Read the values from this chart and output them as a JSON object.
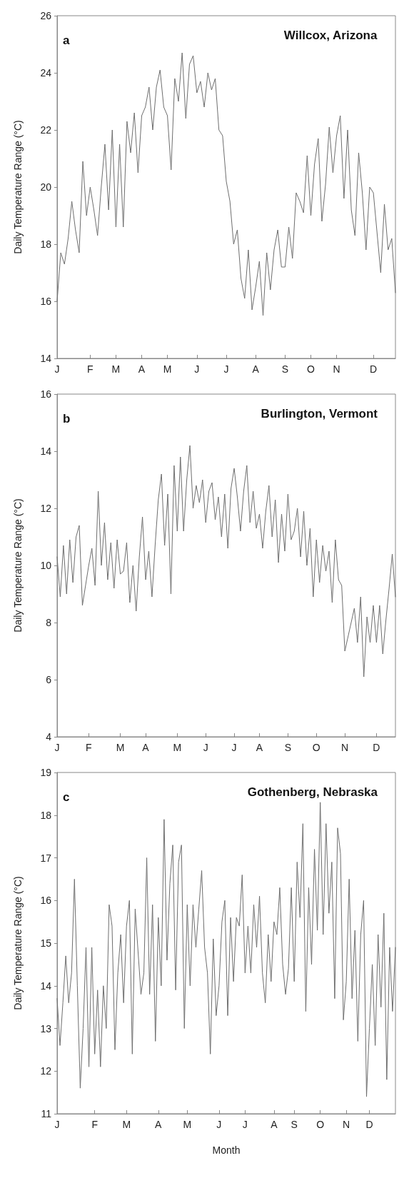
{
  "chart_data": [
    {
      "type": "line",
      "title": "Willcox, Arizona",
      "annotations": [
        "a"
      ],
      "ylabel": "Daily Temperature Range (°C)",
      "color": "#6e6e6e",
      "marker": "none",
      "line_style": "solid",
      "grid": false,
      "categories": [
        "J",
        null,
        null,
        null,
        null,
        null,
        null,
        null,
        null,
        "F",
        null,
        null,
        null,
        null,
        null,
        null,
        "M",
        null,
        null,
        null,
        null,
        null,
        null,
        "A",
        null,
        null,
        null,
        null,
        null,
        null,
        "M",
        null,
        null,
        null,
        null,
        null,
        null,
        null,
        "J",
        null,
        null,
        null,
        null,
        null,
        null,
        null,
        "J",
        null,
        null,
        null,
        null,
        null,
        null,
        null,
        "A",
        null,
        null,
        null,
        null,
        null,
        null,
        null,
        "S",
        null,
        null,
        null,
        null,
        null,
        null,
        "O",
        null,
        null,
        null,
        null,
        null,
        null,
        "N",
        null,
        null,
        null,
        null,
        null,
        null,
        null,
        null,
        null,
        "D",
        null,
        null,
        null,
        null,
        null,
        null
      ],
      "ylim": [
        14,
        26
      ],
      "yticks": [
        14,
        16,
        18,
        20,
        22,
        24,
        26
      ],
      "values": [
        16.0,
        17.7,
        17.3,
        18.2,
        19.5,
        18.5,
        17.7,
        20.9,
        19.0,
        20.0,
        19.2,
        18.3,
        20.0,
        21.5,
        19.2,
        22.0,
        18.6,
        21.5,
        18.6,
        22.3,
        21.2,
        22.6,
        20.5,
        22.5,
        22.8,
        23.5,
        22.0,
        23.5,
        24.1,
        22.8,
        22.5,
        20.6,
        23.8,
        23.0,
        24.7,
        22.4,
        24.3,
        24.6,
        23.3,
        23.7,
        22.8,
        24.0,
        23.4,
        23.8,
        22.0,
        21.8,
        20.2,
        19.5,
        18.0,
        18.5,
        16.8,
        16.1,
        17.8,
        15.7,
        16.5,
        17.4,
        15.5,
        17.7,
        16.4,
        17.8,
        18.5,
        17.2,
        17.2,
        18.6,
        17.5,
        19.8,
        19.5,
        19.1,
        21.1,
        19.0,
        20.8,
        21.7,
        18.8,
        20.1,
        22.1,
        20.5,
        21.8,
        22.5,
        19.6,
        22.0,
        19.2,
        18.3,
        21.2,
        19.8,
        17.8,
        20.0,
        19.8,
        18.4,
        17.0,
        19.4,
        17.8,
        18.2,
        16.3
      ]
    },
    {
      "type": "line",
      "title": "Burlington, Vermont",
      "annotations": [
        "b"
      ],
      "ylabel": "Daily Temperature Range (°C)",
      "color": "#6e6e6e",
      "marker": "none",
      "line_style": "solid",
      "grid": false,
      "categories": [
        "J",
        null,
        null,
        null,
        null,
        null,
        null,
        null,
        null,
        null,
        "F",
        null,
        null,
        null,
        null,
        null,
        null,
        null,
        null,
        null,
        "M",
        null,
        null,
        null,
        null,
        null,
        null,
        null,
        "A",
        null,
        null,
        null,
        null,
        null,
        null,
        null,
        null,
        null,
        "M",
        null,
        null,
        null,
        null,
        null,
        null,
        null,
        null,
        "J",
        null,
        null,
        null,
        null,
        null,
        null,
        null,
        null,
        "J",
        null,
        null,
        null,
        null,
        null,
        null,
        null,
        "A",
        null,
        null,
        null,
        null,
        null,
        null,
        null,
        null,
        "S",
        null,
        null,
        null,
        null,
        null,
        null,
        null,
        null,
        "O",
        null,
        null,
        null,
        null,
        null,
        null,
        null,
        null,
        "N",
        null,
        null,
        null,
        null,
        null,
        null,
        null,
        null,
        null,
        "D",
        null,
        null,
        null,
        null,
        null,
        null
      ],
      "ylim": [
        4,
        16
      ],
      "yticks": [
        4,
        6,
        8,
        10,
        12,
        14,
        16
      ],
      "values": [
        10.3,
        8.9,
        10.7,
        9.0,
        10.9,
        9.4,
        11.0,
        11.4,
        8.6,
        9.3,
        10.0,
        10.6,
        9.3,
        12.6,
        10.0,
        11.5,
        9.5,
        10.8,
        9.2,
        10.9,
        9.7,
        9.8,
        10.8,
        8.7,
        10.0,
        8.4,
        10.3,
        11.7,
        9.5,
        10.5,
        8.9,
        10.7,
        12.3,
        13.2,
        10.7,
        12.5,
        9.0,
        13.5,
        11.2,
        13.8,
        11.2,
        13.0,
        14.2,
        12.0,
        12.8,
        12.2,
        13.0,
        11.5,
        12.6,
        12.9,
        11.6,
        12.4,
        11.0,
        12.5,
        10.6,
        12.7,
        13.4,
        12.4,
        11.2,
        12.6,
        13.5,
        11.5,
        12.6,
        11.3,
        11.8,
        10.6,
        11.9,
        12.8,
        11.0,
        12.3,
        10.1,
        11.8,
        10.5,
        12.5,
        10.9,
        11.2,
        12.0,
        10.3,
        11.9,
        10.0,
        11.3,
        8.9,
        10.9,
        9.4,
        10.7,
        9.8,
        10.5,
        8.7,
        10.9,
        9.5,
        9.3,
        7.0,
        7.5,
        8.0,
        8.5,
        7.3,
        8.9,
        6.1,
        8.2,
        7.3,
        8.6,
        7.3,
        8.6,
        6.9,
        8.1,
        9.2,
        10.4,
        8.9
      ]
    },
    {
      "type": "line",
      "title": "Gothenberg, Nebraska",
      "annotations": [
        "c"
      ],
      "xlabel": "Month",
      "ylabel": "Daily Temperature Range (°C)",
      "color": "#6e6e6e",
      "marker": "none",
      "line_style": "solid",
      "grid": false,
      "categories": [
        "J",
        null,
        null,
        null,
        null,
        null,
        null,
        null,
        null,
        null,
        null,
        null,
        null,
        "F",
        null,
        null,
        null,
        null,
        null,
        null,
        null,
        null,
        null,
        null,
        "M",
        null,
        null,
        null,
        null,
        null,
        null,
        null,
        null,
        null,
        null,
        "A",
        null,
        null,
        null,
        null,
        null,
        null,
        null,
        null,
        null,
        "M",
        null,
        null,
        null,
        null,
        null,
        null,
        null,
        null,
        null,
        null,
        "J",
        null,
        null,
        null,
        null,
        null,
        null,
        null,
        null,
        "J",
        null,
        null,
        null,
        null,
        null,
        null,
        null,
        null,
        null,
        "A",
        null,
        null,
        null,
        null,
        null,
        null,
        "S",
        null,
        null,
        null,
        null,
        null,
        null,
        null,
        null,
        "O",
        null,
        null,
        null,
        null,
        null,
        null,
        null,
        null,
        "N",
        null,
        null,
        null,
        null,
        null,
        null,
        null,
        "D",
        null,
        null,
        null,
        null,
        null,
        null,
        null,
        null,
        null
      ],
      "ylim": [
        11,
        19
      ],
      "yticks": [
        11,
        12,
        13,
        14,
        15,
        16,
        17,
        18,
        19
      ],
      "values": [
        13.7,
        12.6,
        13.6,
        14.7,
        13.6,
        14.3,
        16.5,
        14.0,
        11.6,
        13.0,
        14.9,
        12.1,
        14.9,
        12.4,
        13.9,
        12.1,
        14.0,
        13.0,
        15.9,
        15.4,
        12.5,
        14.3,
        15.2,
        13.6,
        15.4,
        16.0,
        12.4,
        15.8,
        14.8,
        13.8,
        14.3,
        17.0,
        13.8,
        15.9,
        12.7,
        15.6,
        14.0,
        17.9,
        14.6,
        16.4,
        17.3,
        13.9,
        16.9,
        17.3,
        13.0,
        15.9,
        14.0,
        15.9,
        14.9,
        15.8,
        16.7,
        14.9,
        14.3,
        12.4,
        15.1,
        13.3,
        14.0,
        15.5,
        16.0,
        13.3,
        15.6,
        14.1,
        15.6,
        15.4,
        16.6,
        14.3,
        15.4,
        14.3,
        15.9,
        14.9,
        16.1,
        14.3,
        13.6,
        15.2,
        14.1,
        15.5,
        15.2,
        16.3,
        14.5,
        13.8,
        14.4,
        16.3,
        14.1,
        16.9,
        15.6,
        17.8,
        13.4,
        16.3,
        14.5,
        17.2,
        15.3,
        18.3,
        15.2,
        17.8,
        15.7,
        16.9,
        13.7,
        17.7,
        17.1,
        13.2,
        14.1,
        16.5,
        13.7,
        15.3,
        12.7,
        15.2,
        16.0,
        11.4,
        13.0,
        14.5,
        12.6,
        15.2,
        13.5,
        15.7,
        11.8,
        14.9,
        13.4,
        14.9
      ]
    }
  ]
}
